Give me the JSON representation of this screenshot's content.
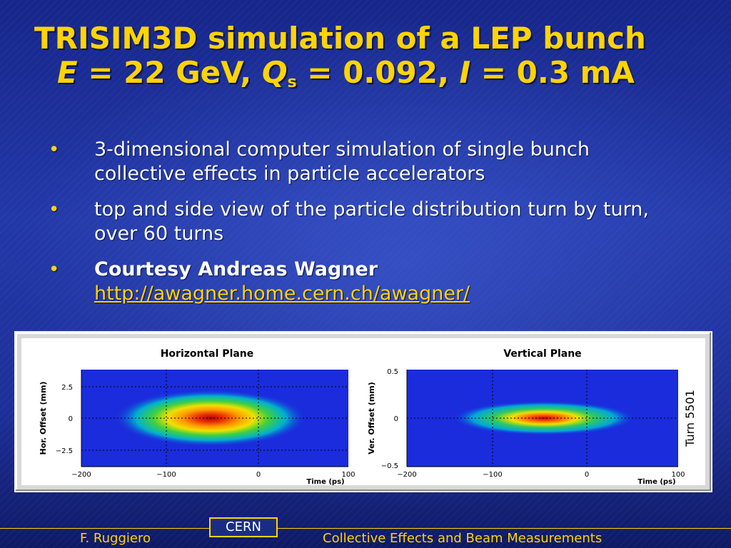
{
  "slide": {
    "title": {
      "line1": "TRISIM3D simulation of a LEP bunch",
      "E_symbol": "E",
      "E_value": " = 22 GeV, ",
      "Q_symbol": "Q",
      "Q_subscript": "s",
      "Q_value": " = 0.092, ",
      "I_symbol": "I",
      "I_value": " = 0.3 mA"
    },
    "bullets": [
      {
        "text": "3-dimensional computer simulation of single bunch collective effects in particle accelerators"
      },
      {
        "text": "top and side view of the particle distribution turn by turn, over 60 turns"
      },
      {
        "text": "Courtesy Andreas Wagner",
        "link": "http://awagner.home.cern.ch/awagner/"
      }
    ],
    "bullet_glyph": "•"
  },
  "figure": {
    "panels": [
      {
        "title": "Horizontal Plane",
        "ylabel": "Hor. Offset (mm)",
        "xlabel": "Time (ps)",
        "yticks": [
          "2.5",
          "0",
          "−2.5"
        ],
        "xticks": [
          "−200",
          "−100",
          "0",
          "100"
        ]
      },
      {
        "title": "Vertical Plane",
        "ylabel": "Ver. Offset (mm)",
        "xlabel": "Time (ps)",
        "yticks": [
          "0.5",
          "0",
          "−0.5"
        ],
        "xticks": [
          "−200",
          "−100",
          "0",
          "100"
        ]
      }
    ],
    "turn_label": "Turn 5501"
  },
  "footer": {
    "author": "F. Ruggiero",
    "logo_text": "CERN",
    "talk_title": "Collective Effects and Beam Measurements"
  },
  "colors": {
    "title": "#ffd400",
    "body_text": "#ffffff",
    "background": "#1a2d86"
  }
}
